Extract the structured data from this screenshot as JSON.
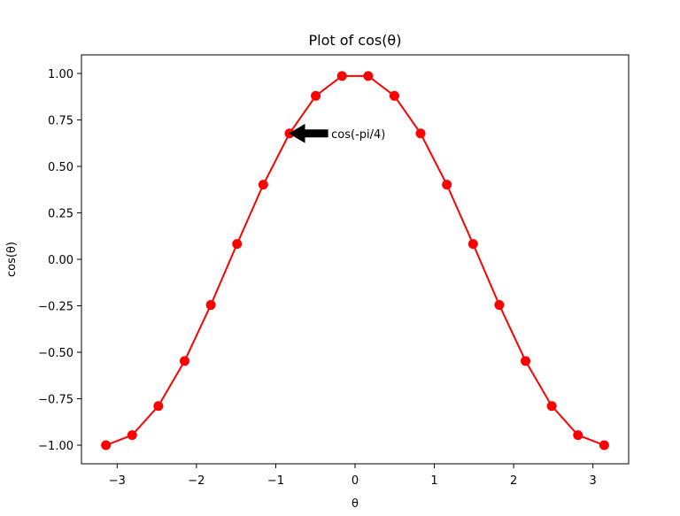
{
  "chart_data": {
    "type": "line",
    "title": "Plot of cos(θ)",
    "xlabel": "θ",
    "ylabel": "cos(θ)",
    "xlim": [
      -3.45,
      3.45
    ],
    "ylim": [
      -1.1,
      1.1
    ],
    "x_ticks": [
      -3,
      -2,
      -1,
      0,
      1,
      2,
      3
    ],
    "x_tick_labels": [
      "−3",
      "−2",
      "−1",
      "0",
      "1",
      "2",
      "3"
    ],
    "y_ticks": [
      1.0,
      0.75,
      0.5,
      0.25,
      0.0,
      -0.25,
      -0.5,
      -0.75,
      -1.0
    ],
    "y_tick_labels": [
      "1.00",
      "0.75",
      "0.50",
      "0.25",
      "0.00",
      "−0.25",
      "−0.50",
      "−0.75",
      "−1.00"
    ],
    "grid": false,
    "series": [
      {
        "color": "#ff0000",
        "marker": "circle",
        "x": [
          -3.1416,
          -2.8109,
          -2.4802,
          -2.1495,
          -1.8188,
          -1.4881,
          -1.1574,
          -0.8267,
          -0.496,
          -0.1653,
          0.1653,
          0.496,
          0.8267,
          1.1574,
          1.4881,
          1.8188,
          2.1495,
          2.4802,
          2.8109,
          3.1416
        ],
        "y": [
          -1.0,
          -0.9458,
          -0.7891,
          -0.5469,
          -0.2455,
          0.0826,
          0.4017,
          0.6773,
          0.8795,
          0.9864,
          0.9864,
          0.8795,
          0.6773,
          0.4017,
          0.0826,
          -0.2455,
          -0.5469,
          -0.7891,
          -0.9458,
          -1.0
        ]
      }
    ],
    "annotation": {
      "text": "cos(-pi/4)",
      "xy": [
        -0.8267,
        0.6773
      ],
      "xytext": [
        -0.3,
        0.6773
      ]
    }
  }
}
